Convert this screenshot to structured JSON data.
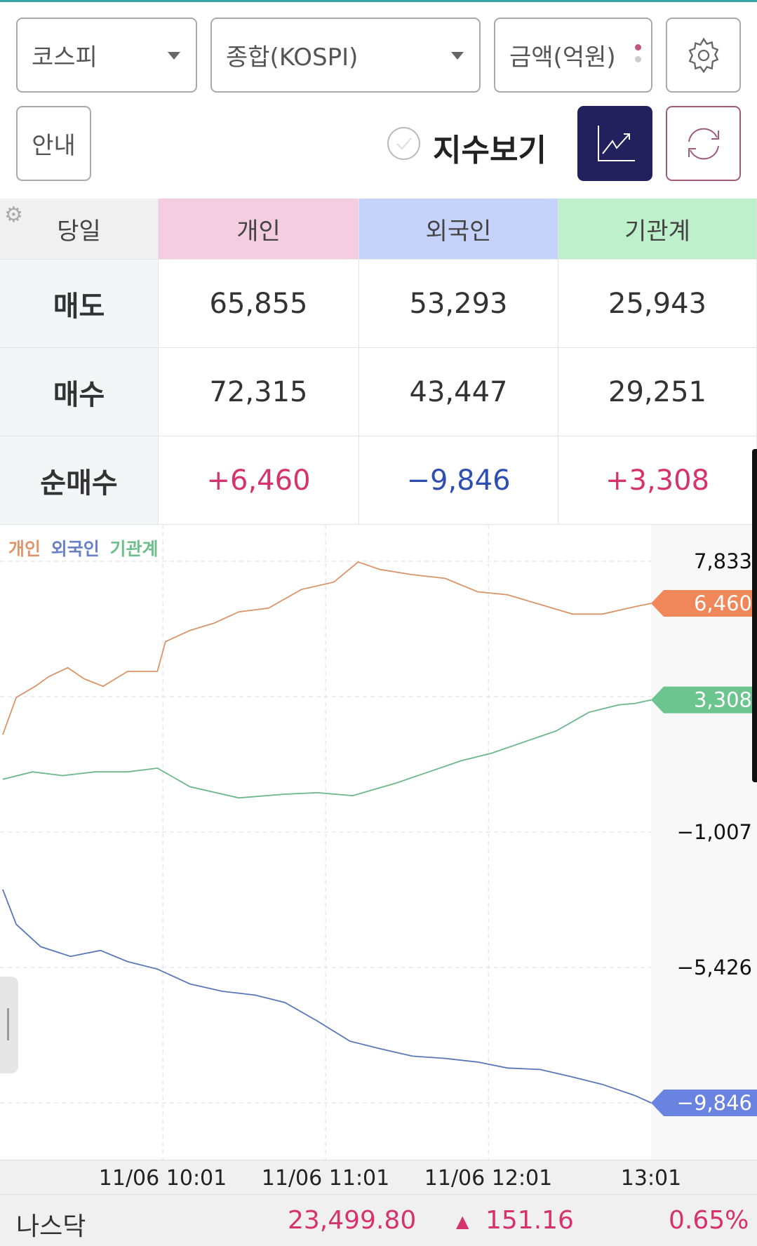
{
  "toolbar": {
    "market_select": "코스피",
    "index_select": "종합(KOSPI)",
    "unit_select": "금액(억원)",
    "guide_button": "안내",
    "show_index_label": "지수보기",
    "show_index_checked": false
  },
  "table": {
    "corner_label": "당일",
    "columns": [
      "개인",
      "외국인",
      "기관계"
    ],
    "column_colors": [
      "#f5cde0",
      "#c5d3fb",
      "#bff0cc"
    ],
    "rows": [
      {
        "label": "매도",
        "values": [
          "65,855",
          "53,293",
          "25,943"
        ]
      },
      {
        "label": "매수",
        "values": [
          "72,315",
          "43,447",
          "29,251"
        ]
      },
      {
        "label": "순매수",
        "values": [
          "+6,460",
          "−9,846",
          "+3,308"
        ]
      }
    ]
  },
  "chart_data": {
    "type": "line",
    "legend": [
      "개인",
      "외국인",
      "기관계"
    ],
    "legend_placement": "top-left",
    "grid": true,
    "ylim": [
      -9846,
      7833
    ],
    "y_ticks": [
      "7,833",
      "−1,007",
      "−5,426"
    ],
    "x_ticks": [
      "11/06 10:01",
      "11/06 11:01",
      "11/06 12:01",
      "13:01"
    ],
    "series": [
      {
        "name": "개인",
        "color": "#d9956a",
        "tag_color": "#f0875a",
        "last_label": "6,460",
        "points": [
          [
            "09:02",
            2173
          ],
          [
            "09:07",
            3388
          ],
          [
            "09:14",
            3753
          ],
          [
            "09:19",
            4068
          ],
          [
            "09:26",
            4360
          ],
          [
            "09:32",
            3995
          ],
          [
            "09:39",
            3753
          ],
          [
            "09:48",
            4238
          ],
          [
            "09:59",
            4238
          ],
          [
            "10:02",
            5210
          ],
          [
            "10:11",
            5574
          ],
          [
            "10:20",
            5817
          ],
          [
            "10:29",
            6181
          ],
          [
            "10:40",
            6303
          ],
          [
            "10:52",
            6910
          ],
          [
            "11:04",
            7153
          ],
          [
            "11:13",
            7809
          ],
          [
            "11:21",
            7566
          ],
          [
            "11:33",
            7396
          ],
          [
            "11:45",
            7274
          ],
          [
            "11:57",
            6837
          ],
          [
            "12:08",
            6740
          ],
          [
            "12:20",
            6424
          ],
          [
            "12:32",
            6109
          ],
          [
            "12:43",
            6109
          ],
          [
            "12:55",
            6351
          ],
          [
            "13:01",
            6460
          ]
        ]
      },
      {
        "name": "외국인",
        "color": "#5a78b8",
        "tag_color": "#6a83e0",
        "last_label": "−9,846",
        "points": [
          [
            "09:02",
            -2879
          ],
          [
            "09:07",
            -4020
          ],
          [
            "09:16",
            -4749
          ],
          [
            "09:27",
            -5065
          ],
          [
            "09:38",
            -4870
          ],
          [
            "09:48",
            -5235
          ],
          [
            "09:59",
            -5478
          ],
          [
            "10:11",
            -5964
          ],
          [
            "10:23",
            -6206
          ],
          [
            "10:35",
            -6328
          ],
          [
            "10:46",
            -6571
          ],
          [
            "10:58",
            -7178
          ],
          [
            "11:10",
            -7834
          ],
          [
            "11:21",
            -8077
          ],
          [
            "11:33",
            -8320
          ],
          [
            "11:45",
            -8393
          ],
          [
            "11:57",
            -8514
          ],
          [
            "12:08",
            -8709
          ],
          [
            "12:20",
            -8757
          ],
          [
            "12:32",
            -9000
          ],
          [
            "12:43",
            -9243
          ],
          [
            "12:55",
            -9607
          ],
          [
            "13:01",
            -9846
          ]
        ]
      },
      {
        "name": "기관계",
        "color": "#6cb88a",
        "tag_color": "#6cc58e",
        "last_label": "3,308",
        "points": [
          [
            "09:02",
            716
          ],
          [
            "09:13",
            959
          ],
          [
            "09:24",
            837
          ],
          [
            "09:36",
            959
          ],
          [
            "09:48",
            959
          ],
          [
            "09:59",
            1080
          ],
          [
            "10:11",
            473
          ],
          [
            "10:29",
            109
          ],
          [
            "10:46",
            230
          ],
          [
            "10:58",
            279
          ],
          [
            "11:11",
            182
          ],
          [
            "11:27",
            594
          ],
          [
            "11:39",
            959
          ],
          [
            "11:51",
            1323
          ],
          [
            "12:02",
            1566
          ],
          [
            "12:14",
            1931
          ],
          [
            "12:26",
            2295
          ],
          [
            "12:38",
            2902
          ],
          [
            "12:49",
            3145
          ],
          [
            "12:55",
            3194
          ],
          [
            "13:01",
            3308
          ]
        ]
      }
    ]
  },
  "ticker": {
    "name": "나스닥",
    "price": "23,499.80",
    "change": "151.16",
    "change_pct": "0.65%",
    "color": "#d6336c"
  }
}
